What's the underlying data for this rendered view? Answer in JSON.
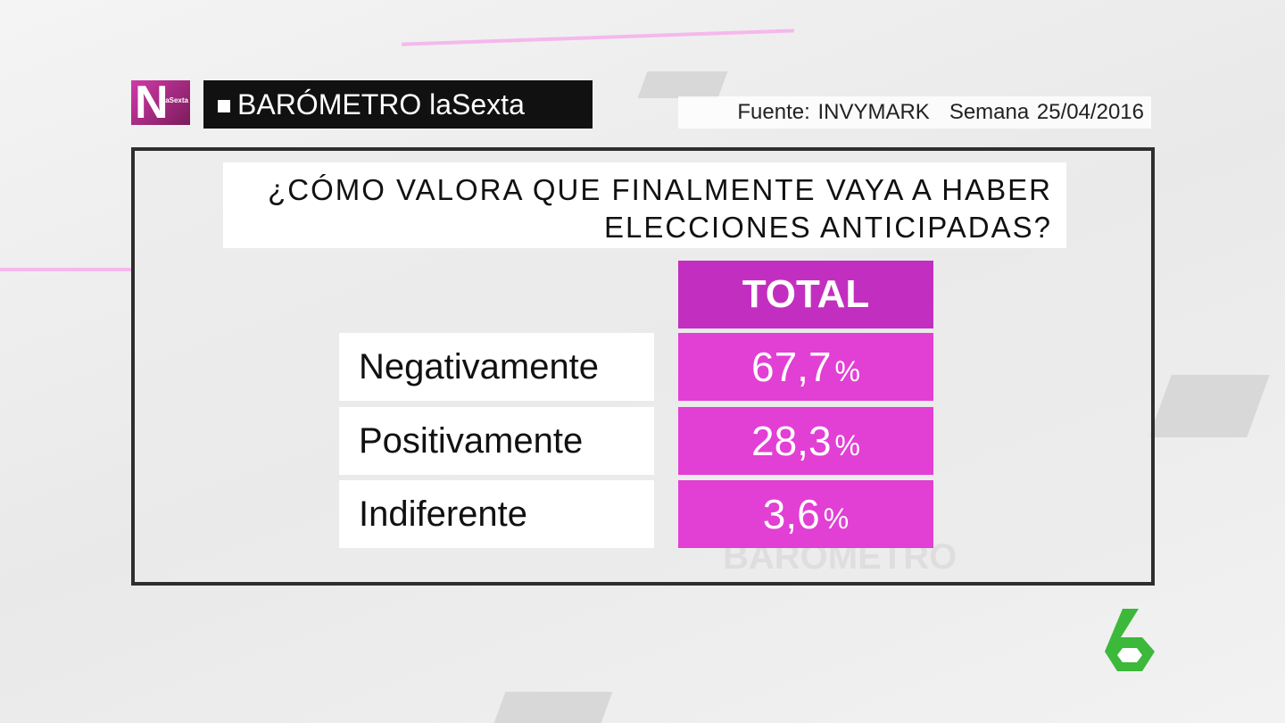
{
  "logo": {
    "letter": "N",
    "brand": "laSexta"
  },
  "header": {
    "title": "BARÓMETRO laSexta",
    "source": "Fuente: INVYMARK",
    "week": "Semana 25/04/2016"
  },
  "question": {
    "lines": [
      "¿CÓMO VALORA QUE FINALMENTE VAYA A HABER",
      "ELECCIONES ANTICIPADAS?"
    ]
  },
  "table": {
    "column": "TOTAL",
    "rows": [
      {
        "label": "Negativamente",
        "value": "67,7",
        "unit": "%"
      },
      {
        "label": "Positivamente",
        "value": "28,3",
        "unit": "%"
      },
      {
        "label": "Indiferente",
        "value": "3,6",
        "unit": "%"
      }
    ]
  },
  "watermark": "BARÓMETRO",
  "channel": "6"
}
